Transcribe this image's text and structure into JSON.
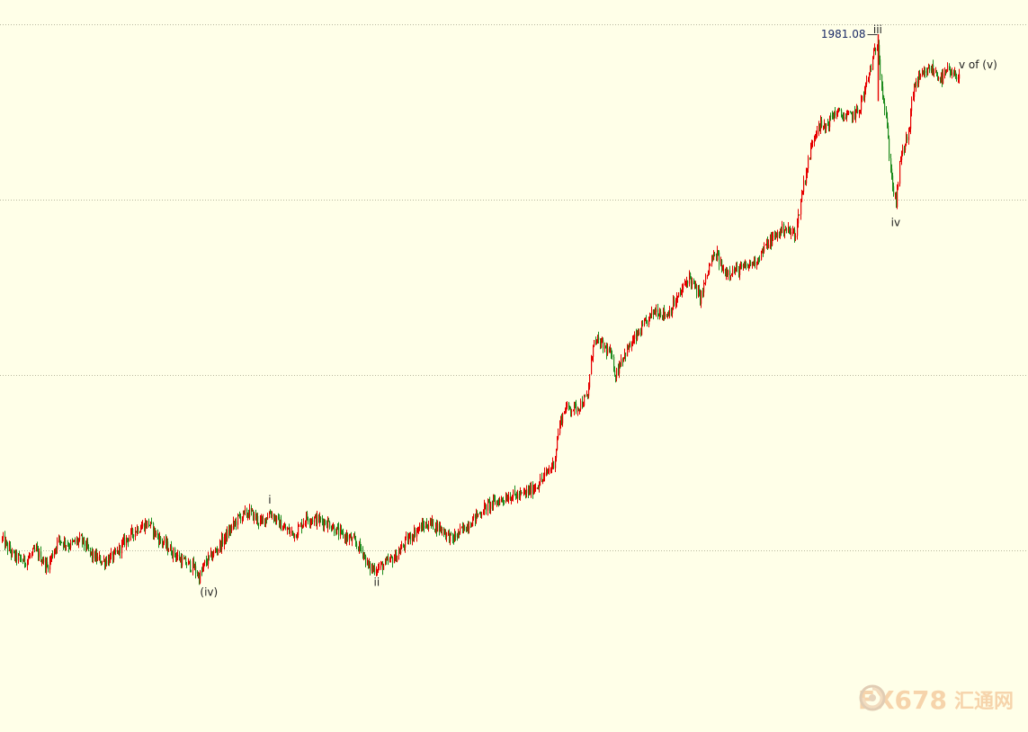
{
  "watermark": {
    "text": "FX678",
    "cn_text": "汇通网",
    "color": "#f0b27a",
    "logo_icon": "spiral-logo-icon"
  },
  "chart_data": {
    "type": "candlestick",
    "title": "",
    "xlabel": "",
    "ylabel": "",
    "grid": "horizontal-dotted",
    "colors": {
      "background": "#ffffe8",
      "up": "#e60000",
      "down": "#1e8c1e",
      "grid": "#b8b8a0"
    },
    "ylim": [
      1360,
      2000
    ],
    "gridlines": [
      1510,
      1670,
      1830,
      1990
    ],
    "price_label": "1981.08",
    "price_label_value": 1981.08,
    "anchors": [
      {
        "i": 0,
        "p": 1520
      },
      {
        "i": 10,
        "p": 1505
      },
      {
        "i": 20,
        "p": 1500
      },
      {
        "i": 30,
        "p": 1510
      },
      {
        "i": 40,
        "p": 1495
      },
      {
        "i": 50,
        "p": 1520
      },
      {
        "i": 60,
        "p": 1515
      },
      {
        "i": 70,
        "p": 1520
      },
      {
        "i": 80,
        "p": 1505
      },
      {
        "i": 90,
        "p": 1500
      },
      {
        "i": 100,
        "p": 1505
      },
      {
        "i": 110,
        "p": 1520
      },
      {
        "i": 120,
        "p": 1530
      },
      {
        "i": 130,
        "p": 1535
      },
      {
        "i": 140,
        "p": 1520
      },
      {
        "i": 150,
        "p": 1510
      },
      {
        "i": 160,
        "p": 1500
      },
      {
        "i": 170,
        "p": 1495
      },
      {
        "i": 175,
        "p": 1485
      },
      {
        "i": 180,
        "p": 1498
      },
      {
        "i": 190,
        "p": 1510
      },
      {
        "i": 200,
        "p": 1525
      },
      {
        "i": 210,
        "p": 1540
      },
      {
        "i": 220,
        "p": 1545
      },
      {
        "i": 230,
        "p": 1535
      },
      {
        "i": 238,
        "p": 1545
      },
      {
        "i": 250,
        "p": 1530
      },
      {
        "i": 260,
        "p": 1525
      },
      {
        "i": 270,
        "p": 1540
      },
      {
        "i": 280,
        "p": 1538
      },
      {
        "i": 290,
        "p": 1535
      },
      {
        "i": 300,
        "p": 1525
      },
      {
        "i": 310,
        "p": 1520
      },
      {
        "i": 320,
        "p": 1510
      },
      {
        "i": 325,
        "p": 1495
      },
      {
        "i": 330,
        "p": 1493
      },
      {
        "i": 340,
        "p": 1497
      },
      {
        "i": 350,
        "p": 1505
      },
      {
        "i": 360,
        "p": 1520
      },
      {
        "i": 370,
        "p": 1530
      },
      {
        "i": 380,
        "p": 1535
      },
      {
        "i": 390,
        "p": 1530
      },
      {
        "i": 400,
        "p": 1520
      },
      {
        "i": 410,
        "p": 1530
      },
      {
        "i": 420,
        "p": 1540
      },
      {
        "i": 430,
        "p": 1550
      },
      {
        "i": 440,
        "p": 1555
      },
      {
        "i": 450,
        "p": 1560
      },
      {
        "i": 460,
        "p": 1560
      },
      {
        "i": 470,
        "p": 1565
      },
      {
        "i": 480,
        "p": 1575
      },
      {
        "i": 490,
        "p": 1590
      },
      {
        "i": 495,
        "p": 1625
      },
      {
        "i": 500,
        "p": 1640
      },
      {
        "i": 510,
        "p": 1640
      },
      {
        "i": 520,
        "p": 1650
      },
      {
        "i": 525,
        "p": 1700
      },
      {
        "i": 530,
        "p": 1700
      },
      {
        "i": 540,
        "p": 1690
      },
      {
        "i": 545,
        "p": 1670
      },
      {
        "i": 550,
        "p": 1685
      },
      {
        "i": 560,
        "p": 1700
      },
      {
        "i": 570,
        "p": 1715
      },
      {
        "i": 580,
        "p": 1730
      },
      {
        "i": 590,
        "p": 1725
      },
      {
        "i": 600,
        "p": 1740
      },
      {
        "i": 610,
        "p": 1760
      },
      {
        "i": 615,
        "p": 1750
      },
      {
        "i": 620,
        "p": 1740
      },
      {
        "i": 630,
        "p": 1775
      },
      {
        "i": 635,
        "p": 1780
      },
      {
        "i": 640,
        "p": 1765
      },
      {
        "i": 650,
        "p": 1765
      },
      {
        "i": 660,
        "p": 1768
      },
      {
        "i": 670,
        "p": 1775
      },
      {
        "i": 680,
        "p": 1790
      },
      {
        "i": 690,
        "p": 1800
      },
      {
        "i": 695,
        "p": 1805
      },
      {
        "i": 700,
        "p": 1800
      },
      {
        "i": 705,
        "p": 1800
      },
      {
        "i": 710,
        "p": 1835
      },
      {
        "i": 715,
        "p": 1860
      },
      {
        "i": 720,
        "p": 1885
      },
      {
        "i": 725,
        "p": 1900
      },
      {
        "i": 730,
        "p": 1895
      },
      {
        "i": 740,
        "p": 1910
      },
      {
        "i": 750,
        "p": 1905
      },
      {
        "i": 760,
        "p": 1910
      },
      {
        "i": 765,
        "p": 1925
      },
      {
        "i": 770,
        "p": 1945
      },
      {
        "i": 775,
        "p": 1965
      },
      {
        "i": 778,
        "p": 1975
      },
      {
        "i": 781,
        "p": 1935
      },
      {
        "i": 785,
        "p": 1905
      },
      {
        "i": 790,
        "p": 1850
      },
      {
        "i": 794,
        "p": 1825
      },
      {
        "i": 797,
        "p": 1860
      },
      {
        "i": 800,
        "p": 1875
      },
      {
        "i": 805,
        "p": 1890
      },
      {
        "i": 810,
        "p": 1935
      },
      {
        "i": 815,
        "p": 1940
      },
      {
        "i": 820,
        "p": 1945
      },
      {
        "i": 825,
        "p": 1950
      },
      {
        "i": 830,
        "p": 1945
      },
      {
        "i": 835,
        "p": 1940
      },
      {
        "i": 840,
        "p": 1948
      },
      {
        "i": 845,
        "p": 1942
      },
      {
        "i": 850,
        "p": 1945
      }
    ],
    "wave_labels": [
      {
        "text": "(iv)",
        "i": 184,
        "p": 1477,
        "pos": "below"
      },
      {
        "text": "i",
        "i": 238,
        "p": 1553,
        "pos": "above"
      },
      {
        "text": "ii",
        "i": 333,
        "p": 1486,
        "pos": "below"
      },
      {
        "text": "iii",
        "i": 778,
        "p": 1982,
        "pos": "above"
      },
      {
        "text": "iv",
        "i": 794,
        "p": 1814,
        "pos": "below"
      },
      {
        "text": "v of (v)",
        "i": 850,
        "p": 1950,
        "pos": "above"
      }
    ]
  }
}
